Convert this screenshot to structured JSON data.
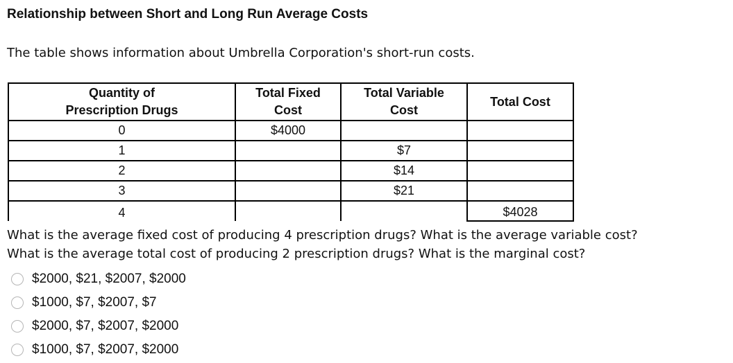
{
  "title": "Relationship between Short and Long Run Average Costs",
  "intro": "The table shows information about Umbrella Corporation's short-run costs.",
  "table": {
    "headers": [
      [
        "Quantity of",
        "Prescription Drugs"
      ],
      [
        "Total Fixed",
        "Cost"
      ],
      [
        "Total Variable",
        "Cost"
      ],
      [
        "Total Cost"
      ]
    ],
    "rows": [
      [
        "0",
        "$4000",
        "",
        ""
      ],
      [
        "1",
        "",
        "$7",
        ""
      ],
      [
        "2",
        "",
        "$14",
        ""
      ],
      [
        "3",
        "",
        "$21",
        ""
      ],
      [
        "4",
        "",
        "",
        "$4028"
      ]
    ]
  },
  "question": {
    "line1": "What is the average fixed cost of producing 4 prescription drugs? What is the average variable cost?",
    "line2": "What is the average total cost of producing 2 prescription drugs? What is the marginal cost?"
  },
  "options": [
    "$2000, $21, $2007, $2000",
    "$1000, $7, $2007, $7",
    "$2000, $7, $2007, $2000",
    "$1000, $7, $2007, $2000"
  ]
}
